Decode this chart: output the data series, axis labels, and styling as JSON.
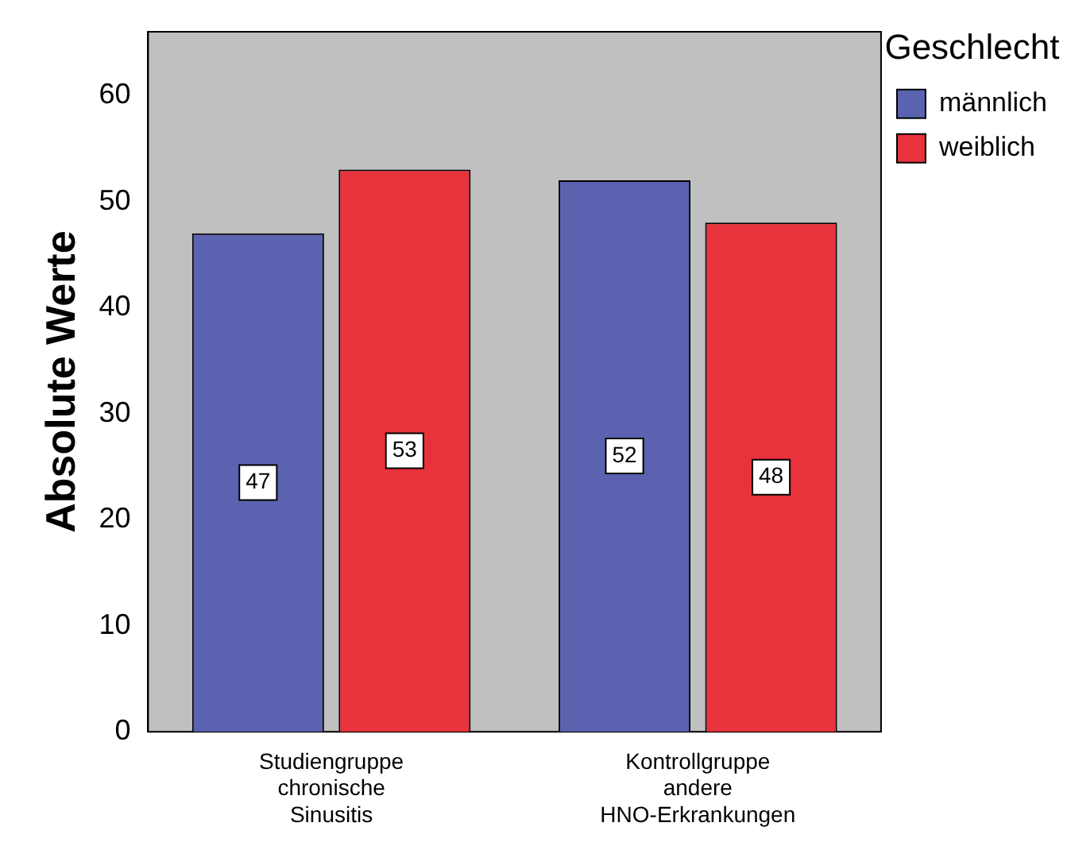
{
  "chart_data": {
    "type": "bar",
    "ylabel": "Absolute Werte",
    "legend_title": "Geschlecht",
    "categories": [
      "Studiengruppe chronische Sinusitis",
      "Kontrollgruppe andere HNO-Erkrankungen"
    ],
    "series": [
      {
        "name": "männlich",
        "color": "#5b62b0",
        "values": [
          47,
          52
        ]
      },
      {
        "name": "weiblich",
        "color": "#e8323c",
        "values": [
          53,
          48
        ]
      }
    ],
    "ylim": [
      0,
      66
    ],
    "yticks": [
      0,
      10,
      20,
      30,
      40,
      50,
      60
    ],
    "data_labels": true,
    "grid": false,
    "legend": "top right"
  }
}
